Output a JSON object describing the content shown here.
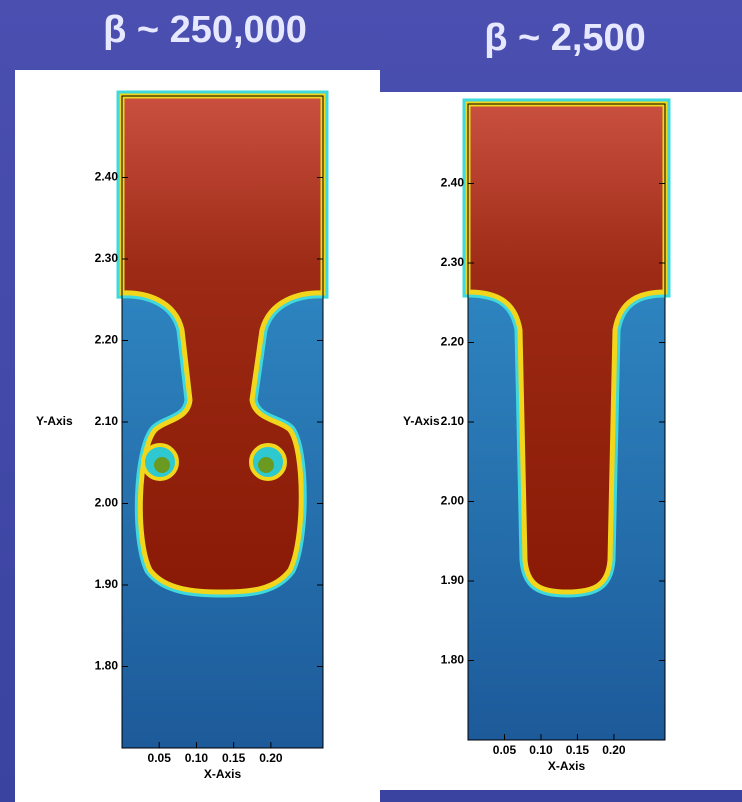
{
  "panels": [
    {
      "title": "β ~ 250,000",
      "x_axis_label": "X-Axis",
      "y_axis_label": "Y-Axis",
      "xlim": [
        0,
        0.27
      ],
      "ylim": [
        1.7,
        2.5
      ],
      "xticks": [
        {
          "value": 0.05,
          "label": "0.05"
        },
        {
          "value": 0.1,
          "label": "0.10"
        },
        {
          "value": 0.15,
          "label": "0.15"
        },
        {
          "value": 0.2,
          "label": "0.20"
        }
      ],
      "yticks": [
        {
          "value": 1.8,
          "label": "1.80"
        },
        {
          "value": 1.9,
          "label": "1.90"
        },
        {
          "value": 2.0,
          "label": "2.00"
        },
        {
          "value": 2.1,
          "label": "2.10"
        },
        {
          "value": 2.2,
          "label": "2.20"
        },
        {
          "value": 2.3,
          "label": "2.30"
        },
        {
          "value": 2.4,
          "label": "2.40"
        }
      ]
    },
    {
      "title": "β ~ 2,500",
      "x_axis_label": "X-Axis",
      "y_axis_label": "Y-Axis",
      "xlim": [
        0,
        0.27
      ],
      "ylim": [
        1.7,
        2.5
      ],
      "xticks": [
        {
          "value": 0.05,
          "label": "0.05"
        },
        {
          "value": 0.1,
          "label": "0.10"
        },
        {
          "value": 0.15,
          "label": "0.15"
        },
        {
          "value": 0.2,
          "label": "0.20"
        }
      ],
      "yticks": [
        {
          "value": 1.8,
          "label": "1.80"
        },
        {
          "value": 1.9,
          "label": "1.90"
        },
        {
          "value": 2.0,
          "label": "2.00"
        },
        {
          "value": 2.1,
          "label": "2.10"
        },
        {
          "value": 2.2,
          "label": "2.20"
        },
        {
          "value": 2.3,
          "label": "2.30"
        },
        {
          "value": 2.4,
          "label": "2.40"
        }
      ]
    }
  ]
}
